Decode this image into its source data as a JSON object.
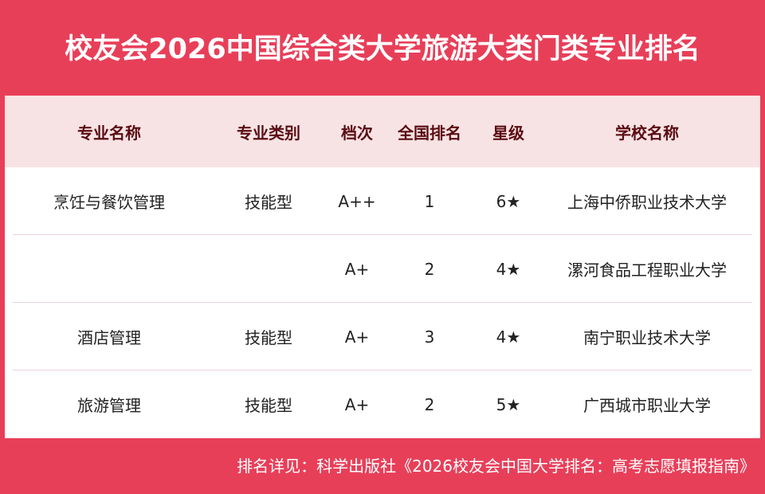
{
  "title": "校友会2026中国综合类大学旅游大类门类专业排名",
  "headers": [
    "专业名称",
    "专业类别",
    "档次",
    "全国排名",
    "星级",
    "学校名称"
  ],
  "rows": [
    [
      "烹饪与餐饮管理",
      "技能型",
      "A++",
      "1",
      "6★",
      "上海中侨职业技术大学"
    ],
    [
      "",
      "",
      "A+",
      "2",
      "4★",
      "漯河食品工程职业大学"
    ],
    [
      "酒店管理",
      "技能型",
      "A+",
      "3",
      "4★",
      "南宁职业技术大学"
    ],
    [
      "旅游管理",
      "技能型",
      "A+",
      "2",
      "5★",
      "广西城市职业大学"
    ]
  ],
  "footer": "排名详见：科学出版社《2026校友会中国大学排名：高考志愿填报指南》",
  "colors": {
    "brand": "#e83f59",
    "header_bg": "#f8e3e4",
    "header_text": "#5a0c12"
  }
}
